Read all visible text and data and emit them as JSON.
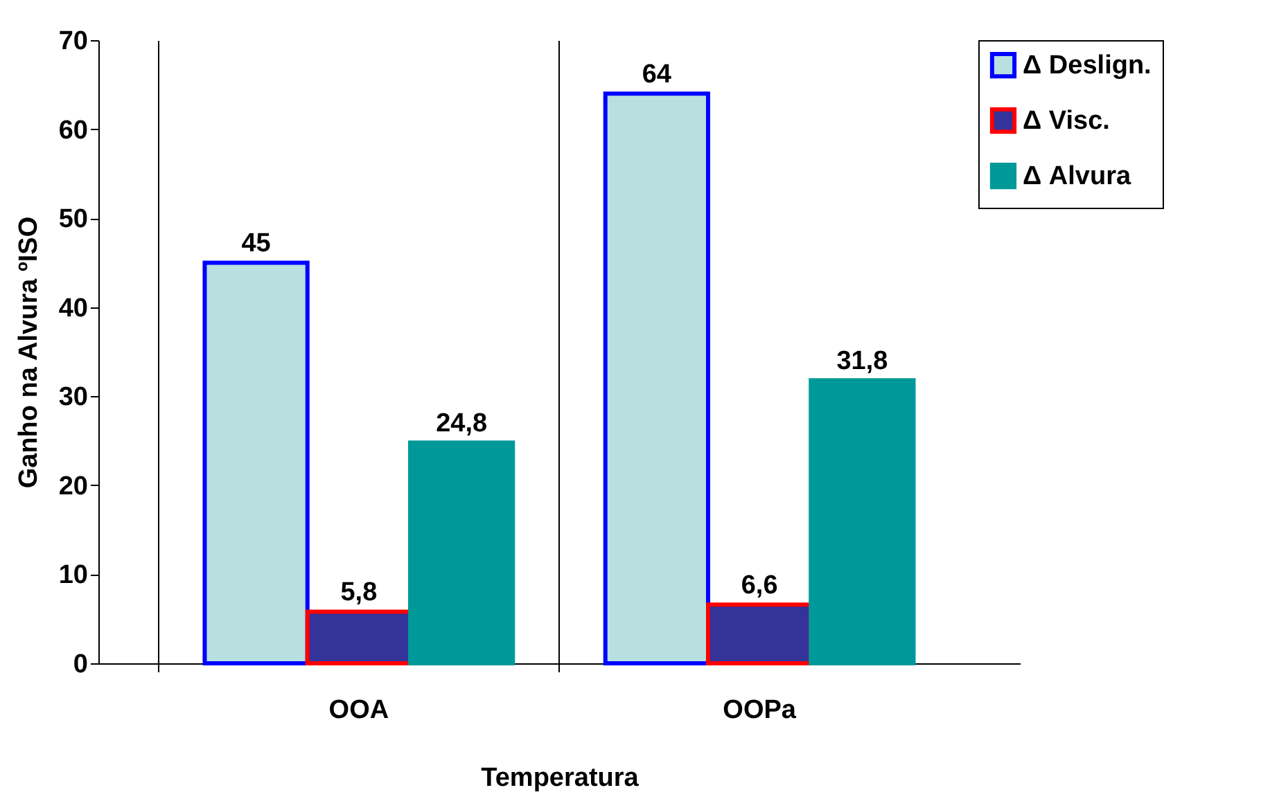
{
  "chart_data": {
    "type": "bar",
    "xlabel": "Temperatura",
    "ylabel": "Ganho na Alvura ºISO",
    "categories": [
      "OOA",
      "OOPa"
    ],
    "series": [
      {
        "name": "Δ Deslign.",
        "color": "#b8e0e0",
        "values": [
          45,
          64
        ],
        "value_labels": [
          "45",
          "64"
        ]
      },
      {
        "name": "Δ Visc.",
        "color": "#333399",
        "values": [
          5.8,
          6.6
        ],
        "value_labels": [
          "5,8",
          "6,6"
        ]
      },
      {
        "name": "Δ Alvura",
        "color": "#009999",
        "values": [
          24.8,
          31.8
        ],
        "value_labels": [
          "24,8",
          "31,8"
        ]
      }
    ],
    "ylim": [
      0,
      70
    ],
    "yticks": [
      0,
      10,
      20,
      30,
      40,
      50,
      60,
      70
    ],
    "grid": "x",
    "legend": "right"
  }
}
